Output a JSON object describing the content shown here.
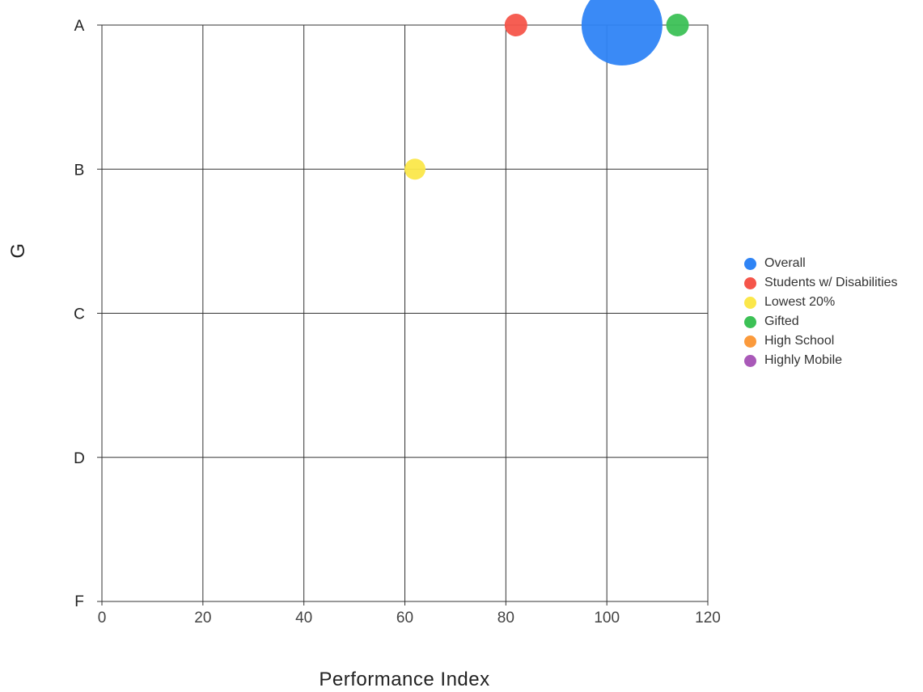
{
  "chart_data": {
    "type": "scatter",
    "title": "",
    "xlabel": "Performance Index",
    "ylabel": "G",
    "xlim": [
      0,
      120
    ],
    "x_ticks": [
      "0",
      "20",
      "40",
      "60",
      "80",
      "100",
      "120"
    ],
    "y_categories": [
      "A",
      "B",
      "C",
      "D",
      "F"
    ],
    "grid": true,
    "legend_position": "right",
    "series": [
      {
        "name": "Overall",
        "color": "#2f84f5",
        "points": [
          {
            "x": 103,
            "y": "A",
            "size": 50
          }
        ]
      },
      {
        "name": "Students w/ Disabilities",
        "color": "#f5554a",
        "points": [
          {
            "x": 82,
            "y": "A",
            "size": 14
          }
        ]
      },
      {
        "name": "Lowest 20%",
        "color": "#fbe74a",
        "points": [
          {
            "x": 62,
            "y": "B",
            "size": 13
          }
        ]
      },
      {
        "name": "Gifted",
        "color": "#3cc156",
        "points": [
          {
            "x": 114,
            "y": "A",
            "size": 14
          }
        ]
      },
      {
        "name": "High School",
        "color": "#fb9a3c",
        "points": []
      },
      {
        "name": "Highly Mobile",
        "color": "#a959b8",
        "points": []
      }
    ]
  }
}
